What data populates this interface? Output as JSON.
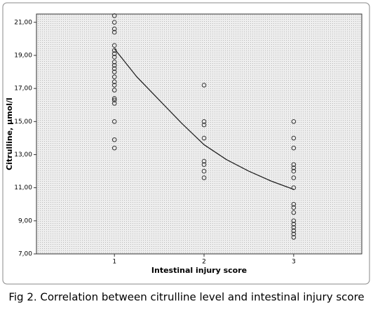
{
  "chart_data": {
    "type": "scatter",
    "xlabel": "Intestinal injury score",
    "ylabel": "Citrulline, µmol/l",
    "caption": "Fig 2. Correlation between citrulline level and intestinal injury score",
    "xlim": [
      0.13,
      3.76
    ],
    "ylim": [
      7,
      21.5
    ],
    "xticks": [
      1,
      2,
      3
    ],
    "yticks": [
      {
        "value": 7,
        "label": "7,00"
      },
      {
        "value": 9,
        "label": "9,00"
      },
      {
        "value": 11,
        "label": "11,00"
      },
      {
        "value": 13,
        "label": "13,00"
      },
      {
        "value": 15,
        "label": "15,00"
      },
      {
        "value": 17,
        "label": "17,00"
      },
      {
        "value": 19,
        "label": "19,00"
      },
      {
        "value": 21,
        "label": "21,00"
      }
    ],
    "points": {
      "x": [
        1,
        1,
        1,
        1,
        1,
        1,
        1,
        1,
        1,
        1,
        1,
        1,
        1,
        1,
        1,
        1,
        1,
        1,
        1,
        1,
        1,
        1,
        2,
        2,
        2,
        2,
        2,
        2,
        2,
        2,
        3,
        3,
        3,
        3,
        3,
        3,
        3,
        3,
        3,
        3,
        3,
        3,
        3,
        3,
        3,
        3,
        3
      ],
      "y": [
        21.4,
        21.0,
        20.6,
        20.4,
        19.6,
        19.3,
        19.1,
        18.9,
        18.6,
        18.4,
        18.2,
        18.0,
        17.7,
        17.4,
        17.2,
        16.9,
        16.4,
        16.3,
        16.1,
        15.0,
        13.9,
        13.4,
        17.2,
        15.0,
        14.8,
        14.0,
        12.6,
        12.4,
        12.0,
        11.6,
        15.0,
        14.0,
        13.4,
        12.4,
        12.2,
        12.0,
        11.6,
        11.0,
        10.0,
        9.8,
        9.5,
        9.0,
        8.8,
        8.6,
        8.4,
        8.2,
        8.0
      ],
      "color": "#333333"
    },
    "fit": {
      "x": [
        1,
        1.25,
        1.5,
        1.75,
        2,
        2.25,
        2.5,
        2.75,
        3
      ],
      "y": [
        19.4,
        17.7,
        16.3,
        14.9,
        13.6,
        12.7,
        12.0,
        11.4,
        10.9
      ],
      "color": "#222222"
    }
  }
}
